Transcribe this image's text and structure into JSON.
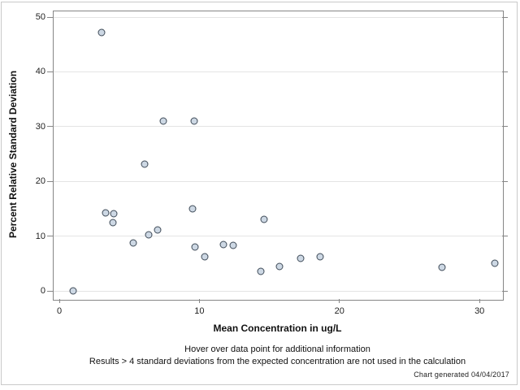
{
  "window": {
    "background": "#ffffff",
    "outer_border_color": "#c9c9c9",
    "axis_color": "#868686",
    "gridline_color": "#e4e4e4"
  },
  "chart_data": {
    "type": "scatter",
    "title": "",
    "xlabel": "Mean Concentration in ug/L",
    "ylabel": "Percent Relative Standard Deviation",
    "x_ticks": [
      0,
      10,
      20,
      30
    ],
    "y_ticks": [
      0,
      10,
      20,
      30,
      40,
      50
    ],
    "xlim": [
      -0.5,
      31.6
    ],
    "ylim": [
      -1.5,
      51.2
    ],
    "grid": "horizontal-only",
    "legend": "none",
    "marker": {
      "shape": "circle",
      "fill": "#cdd8e4",
      "stroke": "#3e4a57"
    },
    "points": [
      [
        1.0,
        0.0
      ],
      [
        3.0,
        47.2
      ],
      [
        3.3,
        14.3
      ],
      [
        3.8,
        12.4
      ],
      [
        3.9,
        14.1
      ],
      [
        5.3,
        8.8
      ],
      [
        6.1,
        23.1
      ],
      [
        6.4,
        10.3
      ],
      [
        7.0,
        11.1
      ],
      [
        7.4,
        31.0
      ],
      [
        9.5,
        15.0
      ],
      [
        9.6,
        31.0
      ],
      [
        9.7,
        8.0
      ],
      [
        10.4,
        6.3
      ],
      [
        11.7,
        8.5
      ],
      [
        12.4,
        8.3
      ],
      [
        14.4,
        3.6
      ],
      [
        14.6,
        13.1
      ],
      [
        15.7,
        4.4
      ],
      [
        17.2,
        5.9
      ],
      [
        18.6,
        6.3
      ],
      [
        27.3,
        4.3
      ],
      [
        31.1,
        5.1
      ]
    ]
  },
  "footnotes": {
    "hover": "Hover over data point for additional information",
    "exclusion": "Results > 4 standard deviations from the expected concentration are not used in the calculation",
    "generated": "Chart generated 04/04/2017"
  }
}
